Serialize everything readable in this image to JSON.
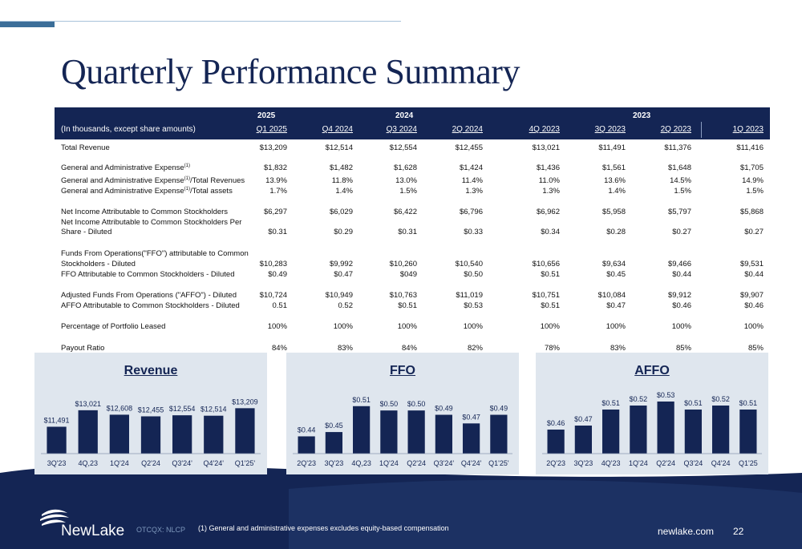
{
  "title": "Quarterly Performance Summary",
  "table": {
    "years": [
      "2025",
      "2024",
      "2023"
    ],
    "header_label": "(In thousands, except share amounts)",
    "columns": [
      "Q1 2025",
      "Q4 2024",
      "Q3 2024",
      "2Q 2024",
      "4Q 2023",
      "3Q 2023",
      "2Q 2023",
      "1Q 2023"
    ],
    "rows": [
      {
        "label": "Total Revenue",
        "values": [
          "$13,209",
          "$12,514",
          "$12,554",
          "$12,455",
          "$13,021",
          "$11,491",
          "$11,376",
          "$11,416"
        ]
      },
      {
        "label": "General and Administrative Expense",
        "sup": "(1)",
        "values": [
          "$1,832",
          "$1,482",
          "$1,628",
          "$1,424",
          "$1,436",
          "$1,561",
          "$1,648",
          "$1,705"
        ]
      },
      {
        "label": "General and Administrative Expense",
        "sup": "(1)",
        "suffix": "/Total Revenues",
        "values": [
          "13.9%",
          "11.8%",
          "13.0%",
          "11.4%",
          "11.0%",
          "13.6%",
          "14.5%",
          "14.9%"
        ]
      },
      {
        "label": "General and Administrative Expense",
        "sup": "(1)",
        "suffix": "/Total assets",
        "values": [
          "1.7%",
          "1.4%",
          "1.5%",
          "1.3%",
          "1.3%",
          "1.4%",
          "1.5%",
          "1.5%"
        ]
      },
      {
        "label": "Net Income Attributable to Common Stockholders",
        "values": [
          "$6,297",
          "$6,029",
          "$6,422",
          "$6,796",
          "$6,962",
          "$5,958",
          "$5,797",
          "$5,868"
        ]
      },
      {
        "label": "Net Income Attributable to Common Stockholders Per",
        "values": []
      },
      {
        "label": "Share - Diluted",
        "values": [
          "$0.31",
          "$0.29",
          "$0.31",
          "$0.33",
          "$0.34",
          "$0.28",
          "$0.27",
          "$0.27"
        ]
      },
      {
        "label": "Funds From Operations(\"FFO\") attributable to Common",
        "values": []
      },
      {
        "label": "Stockholders - Diluted",
        "values": [
          "$10,283",
          "$9,992",
          "$10,260",
          "$10,540",
          "$10,656",
          "$9,634",
          "$9,466",
          "$9,531"
        ]
      },
      {
        "label": "FFO Attributable to Common Stockholders - Diluted",
        "values": [
          "$0.49",
          "$0.47",
          "$049",
          "$0.50",
          "$0.51",
          "$0.45",
          "$0.44",
          "$0.44"
        ]
      },
      {
        "label": "Adjusted Funds From Operations (\"AFFO\") - Diluted",
        "values": [
          "$10,724",
          "$10,949",
          "$10,763",
          "$11,019",
          "$10,751",
          "$10,084",
          "$9,912",
          "$9,907"
        ]
      },
      {
        "label": "AFFO Attributable to Common Stockholders - Diluted",
        "values": [
          "0.51",
          "0.52",
          "$0.51",
          "$0.53",
          "$0.51",
          "$0.47",
          "$0.46",
          "$0.46"
        ]
      },
      {
        "label": "Percentage of Portfolio Leased",
        "values": [
          "100%",
          "100%",
          "100%",
          "100%",
          "100%",
          "100%",
          "100%",
          "100%"
        ]
      },
      {
        "label": "Payout Ratio",
        "values": [
          "84%",
          "83%",
          "84%",
          "82%",
          "78%",
          "83%",
          "85%",
          "85%"
        ]
      }
    ]
  },
  "chart_data": [
    {
      "type": "bar",
      "title": "Revenue",
      "categories": [
        "3Q'23",
        "4Q,23",
        "1Q'24",
        "Q2'24",
        "Q3'24'",
        "Q4'24'",
        "Q1'25'"
      ],
      "values": [
        11491,
        13021,
        12608,
        12455,
        12554,
        12514,
        13209
      ],
      "labels": [
        "$11,491",
        "$13,021",
        "$12,608",
        "$12,455",
        "$12,554",
        "$12,514",
        "$13,209"
      ],
      "ylim": [
        9000,
        14200
      ]
    },
    {
      "type": "bar",
      "title": "FFO",
      "categories": [
        "2Q'23",
        "3Q'23",
        "4Q,23",
        "1Q'24",
        "Q2'24",
        "Q3'24'",
        "Q4'24'",
        "Q1'25'"
      ],
      "values": [
        0.44,
        0.45,
        0.51,
        0.5,
        0.5,
        0.49,
        0.47,
        0.49
      ],
      "labels": [
        "$0.44",
        "$0.45",
        "$0.51",
        "$0.50",
        "$0.50",
        "$0.49",
        "$0.47",
        "$0.49"
      ],
      "ylim": [
        0.4,
        0.53
      ]
    },
    {
      "type": "bar",
      "title": "AFFO",
      "categories": [
        "2Q'23",
        "3Q'23",
        "4Q'23",
        "1Q'24",
        "Q2'24",
        "Q3'24",
        "Q4'24",
        "Q1'25"
      ],
      "values": [
        0.46,
        0.47,
        0.51,
        0.52,
        0.53,
        0.51,
        0.52,
        0.51
      ],
      "labels": [
        "$0.46",
        "$0.47",
        "$0.51",
        "$0.52",
        "$0.53",
        "$0.51",
        "$0.52",
        "$0.51"
      ],
      "ylim": [
        0.4,
        0.54
      ]
    }
  ],
  "footer": {
    "logo_text": "NewLake",
    "ticker": "OTCQX: NLCP",
    "footnote": "(1) General and administrative expenses excludes equity-based compensation",
    "website": "newlake.com",
    "page_number": "22"
  },
  "colors": {
    "navy": "#142554",
    "panel": "#dfe6ee",
    "accent": "#3b6e99"
  }
}
